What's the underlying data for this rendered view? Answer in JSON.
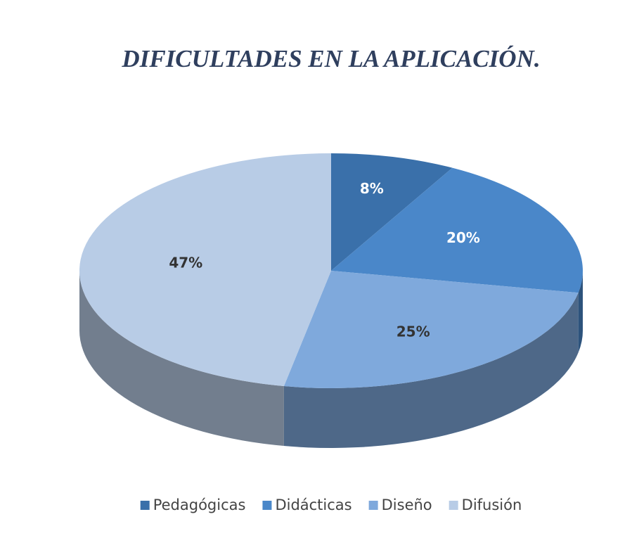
{
  "chart_data": {
    "type": "pie3d",
    "title": "DIFICULTADES EN LA APLICACIÓN.",
    "categories": [
      "Pedagógicas",
      "Didácticas",
      "Diseño",
      "Difusión"
    ],
    "values": [
      8,
      20,
      25,
      47
    ],
    "value_labels": [
      "8%",
      "20%",
      "25%",
      "47%"
    ],
    "colors": [
      "#3a70aa",
      "#4a87c9",
      "#7fa9dc",
      "#b8cce6"
    ],
    "legend": "bottom"
  }
}
